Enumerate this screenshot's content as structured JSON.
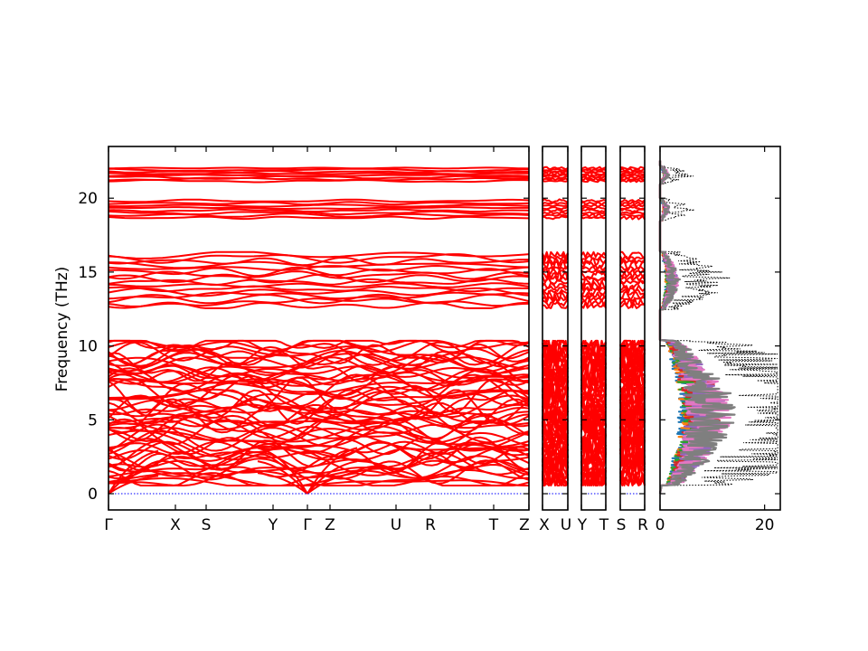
{
  "chart_data": {
    "type": "line",
    "ylabel": "Frequency (THz)",
    "ylim": [
      -1.1,
      23.5
    ],
    "yticks": [
      0,
      5,
      10,
      15,
      20
    ],
    "colors": {
      "bands": "#ff0000",
      "zero_line": "#0000ff",
      "dos_total": "#000000",
      "dos_partial": [
        "#1f77b4",
        "#ff7f0e",
        "#2ca02c",
        "#d62728",
        "#9467bd",
        "#e377c2",
        "#7f7f7f"
      ]
    },
    "band_segments": [
      {
        "name": "segment-1",
        "labels": [
          "Γ",
          "X",
          "S",
          "Y",
          "Γ",
          "Z",
          "U",
          "R",
          "T",
          "Z"
        ]
      },
      {
        "name": "segment-2",
        "labels": [
          "X",
          "U"
        ]
      },
      {
        "name": "segment-3",
        "labels": [
          "Y",
          "T"
        ]
      },
      {
        "name": "segment-4",
        "labels": [
          "S",
          "R"
        ]
      }
    ],
    "band_groups": [
      {
        "range": [
          21.1,
          22.1
        ],
        "count": 8
      },
      {
        "range": [
          18.6,
          19.9
        ],
        "count": 8
      },
      {
        "range": [
          12.6,
          16.3
        ],
        "count": 16
      },
      {
        "range": [
          0.6,
          10.3
        ],
        "count": 60
      }
    ],
    "dos_panel": {
      "xlim": [
        0,
        23
      ],
      "xticks": [
        0,
        20
      ]
    }
  }
}
